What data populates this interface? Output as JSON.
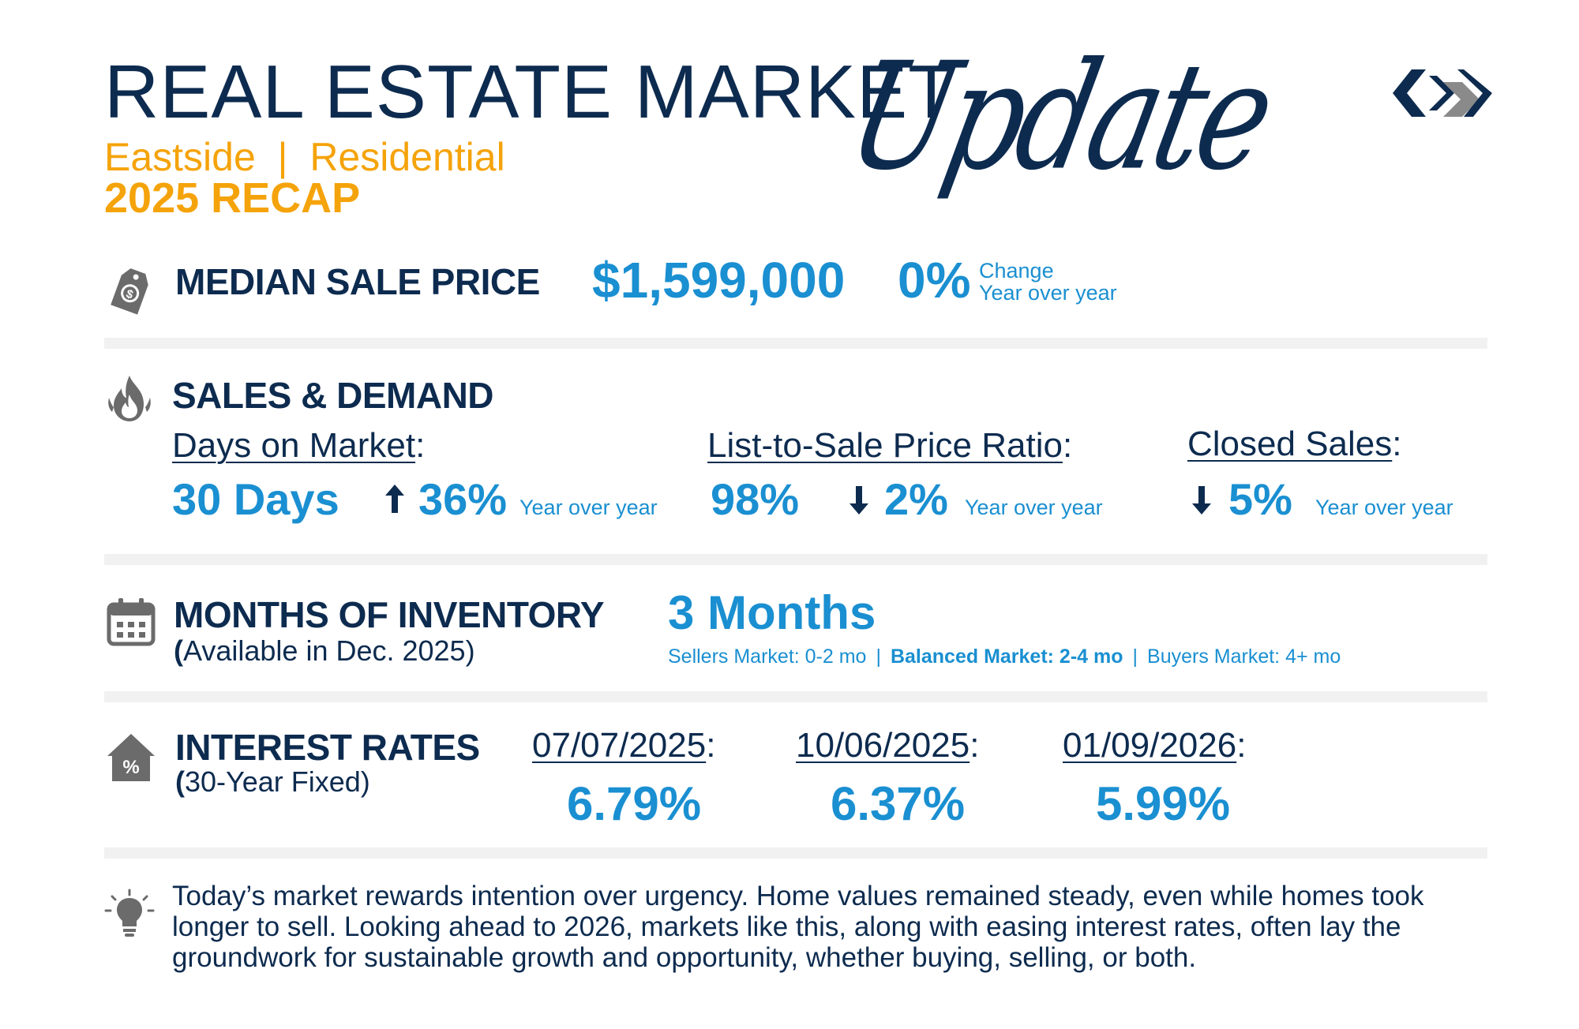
{
  "header": {
    "title": "REAL ESTATE MARKET",
    "script_word": "Update",
    "subtitle": "Eastside  |  Residential",
    "recap": "2025 RECAP"
  },
  "colors": {
    "navy": "#0d2b4f",
    "blue": "#1a8fd1",
    "gold": "#f5a30a",
    "icon_gray": "#6b6b6b"
  },
  "median": {
    "title": "MEDIAN SALE PRICE",
    "price": "$1,599,000",
    "change_pct": "0%",
    "change_label": "Change",
    "change_sub": "Year over year"
  },
  "sales": {
    "title": "SALES & DEMAND",
    "dom": {
      "label": "Days on Market",
      "colon": ":",
      "value": "30 Days",
      "change": "36%",
      "direction": "up",
      "note": "Year over year"
    },
    "ratio": {
      "label": "List-to-Sale Price Ratio",
      "colon": ":",
      "value": "98%",
      "change": "2%",
      "direction": "down",
      "note": "Year over year"
    },
    "closed": {
      "label": "Closed Sales",
      "colon": ":",
      "change": "5%",
      "direction": "down",
      "note": "Year over year"
    }
  },
  "inventory": {
    "title": "MONTHS OF INVENTORY",
    "paren_open": "(",
    "subtitle": "Available in Dec. 2025)",
    "value": "3 Months",
    "sellers": "Sellers Market: 0-2 mo",
    "balanced": "Balanced Market: 2-4 mo",
    "buyers": "Buyers Market: 4+ mo",
    "separator": "|"
  },
  "rates": {
    "title": "INTEREST RATES",
    "paren_open": "(",
    "subtitle": "30-Year Fixed)",
    "items": [
      {
        "date": "07/07/2025",
        "colon": ":",
        "rate": "6.79%"
      },
      {
        "date": "10/06/2025",
        "colon": ":",
        "rate": "6.37%"
      },
      {
        "date": "01/09/2026",
        "colon": ":",
        "rate": "5.99%"
      }
    ]
  },
  "insight": {
    "text": "Today’s market rewards intention over urgency. Home values remained steady, even while homes took longer to sell. Looking ahead to 2026, markets like this, along with easing interest rates, often lay the groundwork for sustainable growth and opportunity, whether buying, selling, or both."
  },
  "icons": {
    "median": "price-tag-icon",
    "sales": "fire-icon",
    "inventory": "calendar-icon",
    "rates": "house-percent-icon",
    "insight": "lightbulb-icon",
    "logo": "brand-logo"
  }
}
